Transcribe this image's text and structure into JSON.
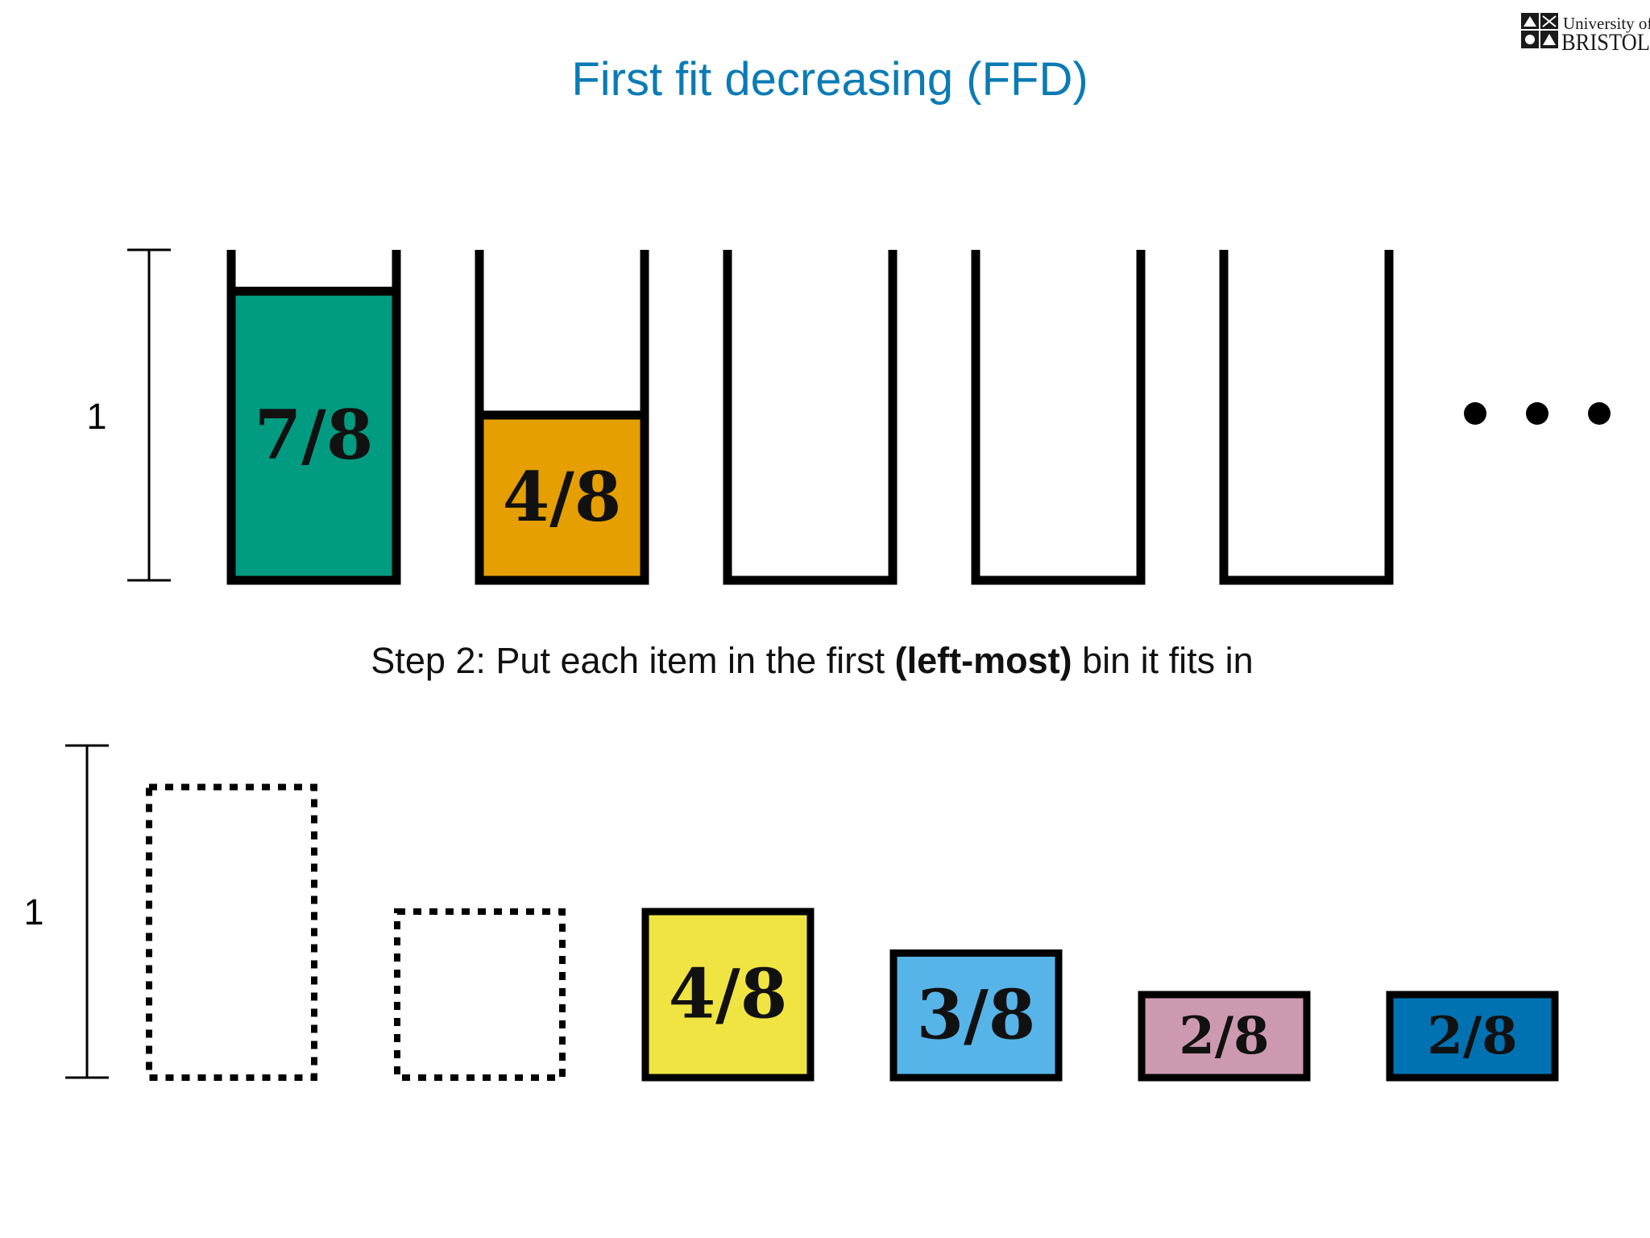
{
  "slide": {
    "title": "First fit decreasing (FFD)",
    "subtitle_parts": {
      "before": "Step 2: Put each item in the first ",
      "bold": "(left-most)",
      "after": " bin it fits in"
    }
  },
  "logo": {
    "line1": "University of",
    "line2": "BRISTOL",
    "icon": "university-crest-icon"
  },
  "bins_row": {
    "scale_label": "1",
    "bins": [
      {
        "fill": 0.875,
        "label": "7/8",
        "color": "#009B80"
      },
      {
        "fill": 0.5,
        "label": "4/8",
        "color": "#E69F00"
      },
      {
        "fill": 0,
        "label": ""
      },
      {
        "fill": 0,
        "label": ""
      },
      {
        "fill": 0
      }
    ],
    "ellipsis": "more-bins-icon"
  },
  "items_row": {
    "scale_label": "1",
    "items": [
      {
        "size": 0.875,
        "label": "",
        "placed": true
      },
      {
        "size": 0.5,
        "label": "",
        "placed": true
      },
      {
        "size": 0.5,
        "label": "4/8",
        "color": "#F0E442",
        "placed": false
      },
      {
        "size": 0.375,
        "label": "3/8",
        "color": "#56B4E9",
        "placed": false
      },
      {
        "size": 0.25,
        "label": "2/8",
        "color": "#CC99B0",
        "placed": false
      },
      {
        "size": 0.25,
        "label": "2/8",
        "color": "#0072B2",
        "placed": false
      }
    ]
  },
  "colors": {
    "title": "#0A7BB5",
    "stroke": "#000000"
  }
}
